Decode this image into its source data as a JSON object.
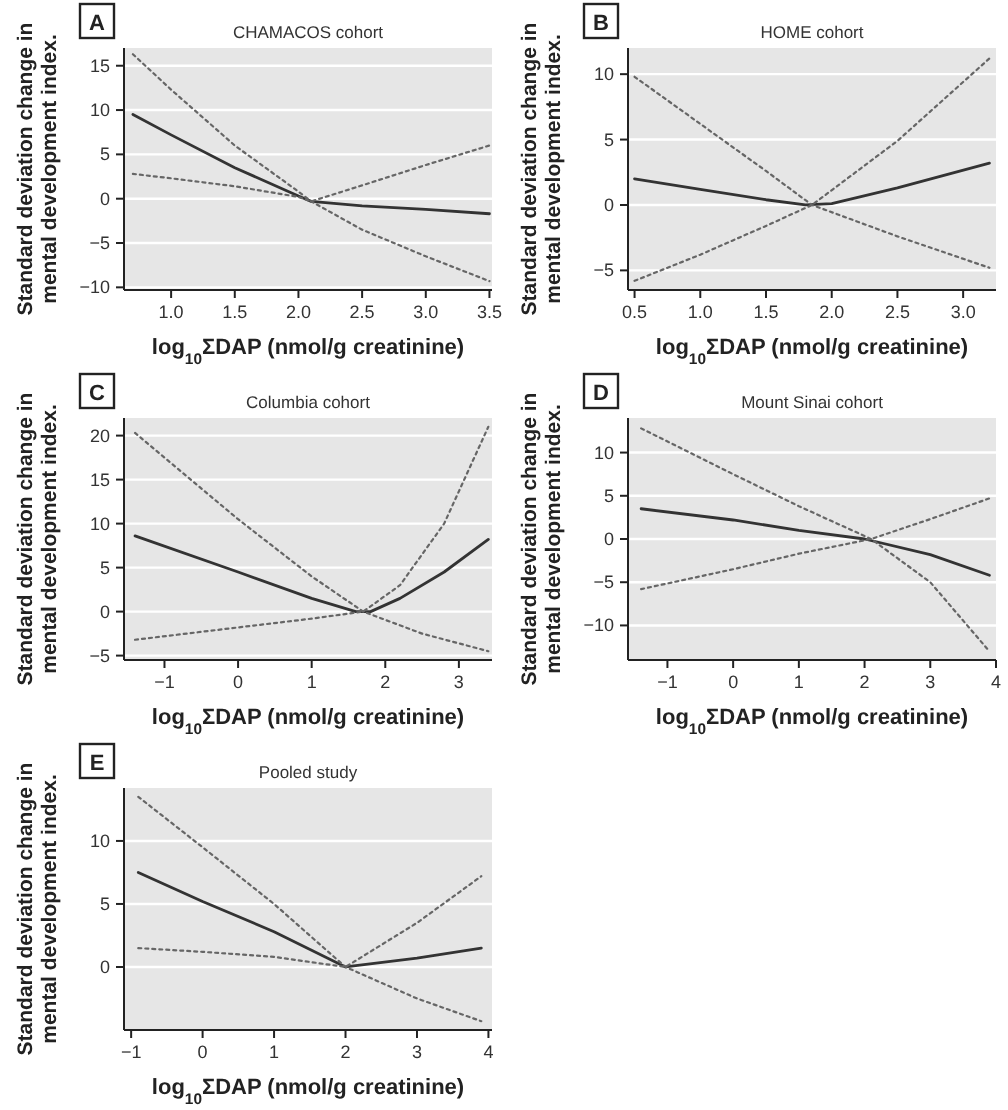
{
  "chart_data": [
    {
      "type": "line",
      "title": "CHAMACOS cohort",
      "annotations": [
        "A"
      ],
      "xlabel": "log$_{10}$ΣDAP (nmol/g creatinine)",
      "ylabel": "Standard deviation change in\nmental development index.",
      "grid": "y",
      "xlim": [
        0.63,
        3.52
      ],
      "xticks": [
        {
          "value": 1,
          "label": "1.0"
        },
        1.5,
        {
          "value": 2,
          "label": "2.0"
        },
        2.5,
        {
          "value": 3,
          "label": "3.0"
        },
        3.5
      ],
      "ylim": [
        -10.3,
        17
      ],
      "yticks": [
        -10,
        -5,
        0,
        5,
        10,
        15
      ],
      "series": [
        {
          "color": "#333333",
          "line_style": "solid",
          "x": [
            0.7,
            1.0,
            1.5,
            2.0,
            2.1,
            2.5,
            3.0,
            3.5
          ],
          "values": [
            9.5,
            7.2,
            3.5,
            0.3,
            -0.3,
            -0.8,
            -1.2,
            -1.7
          ]
        },
        {
          "color": "#666666",
          "line_style": "dotted",
          "x": [
            0.7,
            1.0,
            1.5,
            2.0,
            2.1,
            2.5,
            3.0,
            3.5
          ],
          "values": [
            16.3,
            12.3,
            6.0,
            0.8,
            -0.3,
            -3.5,
            -6.5,
            -9.3
          ]
        },
        {
          "color": "#666666",
          "line_style": "dotted",
          "x": [
            0.7,
            1.0,
            1.5,
            2.0,
            2.1,
            2.5,
            3.0,
            3.5
          ],
          "values": [
            2.8,
            2.3,
            1.4,
            0.2,
            -0.3,
            1.5,
            3.8,
            6.0
          ]
        }
      ]
    },
    {
      "type": "line",
      "title": "HOME cohort",
      "annotations": [
        "B"
      ],
      "xlabel": "log$_{10}$ΣDAP (nmol/g creatinine)",
      "ylabel": "Standard deviation change in\nmental development index.",
      "grid": "y",
      "xlim": [
        0.45,
        3.25
      ],
      "xticks": [
        {
          "value": 0.5,
          "label": "0.5"
        },
        {
          "value": 1,
          "label": "1.0"
        },
        1.5,
        {
          "value": 2,
          "label": "2.0"
        },
        2.5,
        {
          "value": 3,
          "label": "3.0"
        }
      ],
      "ylim": [
        -6.5,
        12
      ],
      "yticks": [
        -5,
        0,
        5,
        10
      ],
      "series": [
        {
          "color": "#333333",
          "line_style": "solid",
          "x": [
            0.5,
            1.0,
            1.5,
            1.8,
            2.0,
            2.5,
            3.2
          ],
          "values": [
            2.0,
            1.2,
            0.4,
            0,
            0.1,
            1.3,
            3.2
          ]
        },
        {
          "color": "#666666",
          "line_style": "dotted",
          "x": [
            0.5,
            1.0,
            1.5,
            1.85,
            2.5,
            3.2
          ],
          "values": [
            9.8,
            6.2,
            2.6,
            0,
            -2.4,
            -4.8
          ]
        },
        {
          "color": "#666666",
          "line_style": "dotted",
          "x": [
            0.5,
            1.0,
            1.5,
            1.85,
            2.5,
            3.2
          ],
          "values": [
            -5.8,
            -3.8,
            -1.6,
            0,
            4.9,
            11.2
          ]
        }
      ]
    },
    {
      "type": "line",
      "title": "Columbia cohort",
      "annotations": [
        "C"
      ],
      "xlabel": "log$_{10}$ΣDAP (nmol/g creatinine)",
      "ylabel": "Standard deviation change in\nmental development index.",
      "grid": "y",
      "xlim": [
        -1.55,
        3.45
      ],
      "xticks": [
        -1,
        0,
        1,
        2,
        3
      ],
      "ylim": [
        -5.5,
        22
      ],
      "yticks": [
        -5,
        0,
        5,
        10,
        15,
        20
      ],
      "series": [
        {
          "color": "#333333",
          "line_style": "solid",
          "x": [
            -1.4,
            0,
            1,
            1.6,
            1.8,
            2.2,
            2.8,
            3.4
          ],
          "values": [
            8.6,
            4.5,
            1.5,
            0,
            0,
            1.5,
            4.5,
            8.2
          ]
        },
        {
          "color": "#666666",
          "line_style": "dotted",
          "x": [
            -1.4,
            0,
            1,
            1.7,
            2.5,
            3.4
          ],
          "values": [
            20.3,
            10.5,
            4.0,
            0,
            -2.5,
            -4.5
          ]
        },
        {
          "color": "#666666",
          "line_style": "dotted",
          "x": [
            -1.4,
            0,
            1,
            1.7,
            2.2,
            2.8,
            3.4
          ],
          "values": [
            -3.2,
            -1.8,
            -0.8,
            0,
            3.0,
            10.0,
            21.0
          ]
        }
      ]
    },
    {
      "type": "line",
      "title": "Mount Sinai cohort",
      "annotations": [
        "D"
      ],
      "xlabel": "log$_{10}$ΣDAP (nmol/g creatinine)",
      "ylabel": "Standard deviation change in\nmental development index.",
      "grid": "y",
      "xlim": [
        -1.6,
        4.0
      ],
      "xticks": [
        -1,
        0,
        1,
        2,
        3,
        4
      ],
      "ylim": [
        -14,
        14
      ],
      "yticks": [
        -10,
        -5,
        0,
        5,
        10
      ],
      "series": [
        {
          "color": "#333333",
          "line_style": "solid",
          "x": [
            -1.4,
            0,
            1,
            2.0,
            3,
            3.9
          ],
          "values": [
            3.5,
            2.2,
            1.0,
            0,
            -1.8,
            -4.2
          ]
        },
        {
          "color": "#666666",
          "line_style": "dotted",
          "x": [
            -1.4,
            0,
            1,
            2.1,
            3,
            3.9
          ],
          "values": [
            12.8,
            7.5,
            3.8,
            0,
            -5.0,
            -13.0
          ]
        },
        {
          "color": "#666666",
          "line_style": "dotted",
          "x": [
            -1.4,
            0,
            1,
            2.1,
            3,
            3.9
          ],
          "values": [
            -5.8,
            -3.5,
            -1.7,
            0,
            2.3,
            4.7
          ]
        }
      ]
    },
    {
      "type": "line",
      "title": "Pooled study",
      "annotations": [
        "E"
      ],
      "xlabel": "log$_{10}$ΣDAP (nmol/g creatinine)",
      "ylabel": "Standard deviation change in\nmental development index.",
      "grid": "y",
      "xlim": [
        -1.1,
        4.05
      ],
      "xticks": [
        -1,
        0,
        1,
        2,
        3,
        4
      ],
      "ylim": [
        -5,
        14.2
      ],
      "yticks": [
        0,
        5,
        10
      ],
      "series": [
        {
          "color": "#333333",
          "line_style": "solid",
          "x": [
            -0.9,
            0,
            1,
            2,
            3,
            3.9
          ],
          "values": [
            7.5,
            5.2,
            2.8,
            0,
            0.7,
            1.5
          ]
        },
        {
          "color": "#666666",
          "line_style": "dotted",
          "x": [
            -0.9,
            0,
            1,
            2,
            3,
            3.9
          ],
          "values": [
            13.5,
            9.5,
            5.0,
            0,
            -2.5,
            -4.3
          ]
        },
        {
          "color": "#666666",
          "line_style": "dotted",
          "x": [
            -0.9,
            0,
            1,
            2,
            3,
            3.9
          ],
          "values": [
            1.5,
            1.2,
            0.8,
            0,
            3.5,
            7.2
          ]
        }
      ]
    }
  ]
}
